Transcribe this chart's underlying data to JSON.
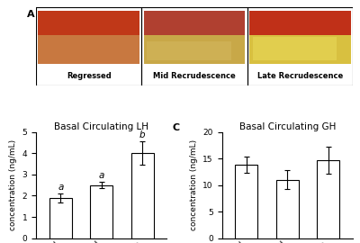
{
  "panel_A_labels": [
    "Regressed",
    "Mid Recrudescence",
    "Late Recrudescence"
  ],
  "panel_A_bg_colors": [
    "#d4955a",
    "#c8a855",
    "#d4b840"
  ],
  "panel_A_top_colors": [
    "#c03820",
    "#c84530",
    "#c83020"
  ],
  "panel_A_mid_colors": [
    "#c87848",
    "#c8a050",
    "#d8c050"
  ],
  "panel_B_title": "Basal Circulating LH",
  "panel_B_categories": [
    "Regressed",
    "Mid",
    "Late"
  ],
  "panel_B_values": [
    1.9,
    2.5,
    4.0
  ],
  "panel_B_errors": [
    0.2,
    0.15,
    0.55
  ],
  "panel_B_ylabel": "concentration (ng/mL)",
  "panel_B_ylim": [
    0,
    5
  ],
  "panel_B_yticks": [
    0,
    1,
    2,
    3,
    4,
    5
  ],
  "panel_B_sig_labels": [
    "a",
    "a",
    "b"
  ],
  "panel_C_title": "Basal Circulating GH",
  "panel_C_categories": [
    "Regressed",
    "Mid",
    "Late"
  ],
  "panel_C_values": [
    13.8,
    11.0,
    14.7
  ],
  "panel_C_errors": [
    1.5,
    1.8,
    2.5
  ],
  "panel_C_ylabel": "concentration (ng/mL)",
  "panel_C_ylim": [
    0,
    20
  ],
  "panel_C_yticks": [
    0,
    5,
    10,
    15,
    20
  ],
  "bar_color": "#ffffff",
  "bar_edgecolor": "#000000",
  "bar_width": 0.55,
  "panel_label_fontsize": 8,
  "title_fontsize": 7.5,
  "tick_fontsize": 6.5,
  "ylabel_fontsize": 6.5,
  "sig_fontsize": 7.5,
  "background_color": "#ffffff"
}
